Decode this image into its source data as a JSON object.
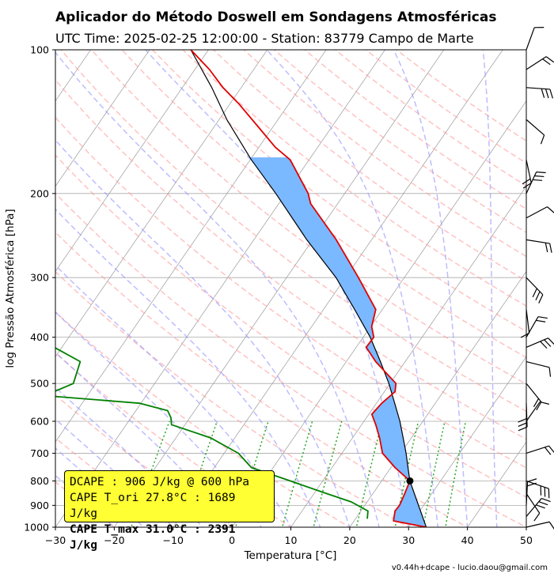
{
  "header": {
    "title": "Aplicador do Método Doswell em Sondagens Atmosféricas",
    "subtitle": "UTC Time: 2025-02-25 12:00:00 - Station: 83779 Campo de Marte"
  },
  "footer": {
    "credit": "v0.44h+dcape  -  lucio.daou@gmail.com"
  },
  "legend": {
    "line1": "DCAPE : 906 J/kg @ 600 hPa",
    "line2": "CAPE T_ori 27.8°C : 1689 J/kg",
    "line3": "CAPE T_max 31.0°C : 2391 J/kg"
  },
  "colors": {
    "temperature": "#e00000",
    "dewpoint": "#008000",
    "parcel": "#000000",
    "cape_fill": "#7ab8ff",
    "dry_adiabat": "#ff9999",
    "moist_adiabat": "#9999ff",
    "mixing_ratio": "#009900",
    "isotherm": "#999999",
    "legend_bg": "#ffff33"
  },
  "chart_data": {
    "type": "skew-t log-p",
    "xlabel": "Temperatura [°C]",
    "ylabel": "log Pressão Atmosférica [hPa]",
    "xlim": [
      -30,
      50
    ],
    "ylim": [
      1000,
      100
    ],
    "x_ticks": [
      -30,
      -20,
      -10,
      0,
      10,
      20,
      30,
      40,
      50
    ],
    "y_ticks": [
      100,
      200,
      300,
      400,
      500,
      600,
      700,
      800,
      900,
      1000
    ],
    "y_scale": "log",
    "grid": true,
    "skew_per_decade_celsius": 56,
    "temperature_profile": [
      {
        "p": 1000,
        "t": 33.0
      },
      {
        "p": 970,
        "t": 26.7
      },
      {
        "p": 925,
        "t": 25.8
      },
      {
        "p": 900,
        "t": 25.9
      },
      {
        "p": 850,
        "t": 25.4
      },
      {
        "p": 800,
        "t": 24.8
      },
      {
        "p": 750,
        "t": 20.7
      },
      {
        "p": 700,
        "t": 16.9
      },
      {
        "p": 650,
        "t": 14.6
      },
      {
        "p": 610,
        "t": 12.4
      },
      {
        "p": 580,
        "t": 10.5
      },
      {
        "p": 550,
        "t": 10.9
      },
      {
        "p": 520,
        "t": 11.8
      },
      {
        "p": 500,
        "t": 11.0
      },
      {
        "p": 450,
        "t": 5.0
      },
      {
        "p": 420,
        "t": 1.7
      },
      {
        "p": 400,
        "t": 1.8
      },
      {
        "p": 380,
        "t": 0.2
      },
      {
        "p": 350,
        "t": -1.1
      },
      {
        "p": 300,
        "t": -7.8
      },
      {
        "p": 250,
        "t": -16.0
      },
      {
        "p": 210,
        "t": -24.6
      },
      {
        "p": 200,
        "t": -26.2
      },
      {
        "p": 170,
        "t": -33.2
      },
      {
        "p": 160,
        "t": -37.2
      },
      {
        "p": 145,
        "t": -42.5
      },
      {
        "p": 130,
        "t": -48.4
      },
      {
        "p": 120,
        "t": -53.1
      },
      {
        "p": 110,
        "t": -57.5
      },
      {
        "p": 100,
        "t": -63.0
      }
    ],
    "dewpoint_profile": [
      {
        "p": 960,
        "t": 22.0
      },
      {
        "p": 925,
        "t": 21.2
      },
      {
        "p": 885,
        "t": 17.3
      },
      {
        "p": 850,
        "t": 12.1
      },
      {
        "p": 800,
        "t": 4.5
      },
      {
        "p": 750,
        "t": -3.7
      },
      {
        "p": 700,
        "t": -7.6
      },
      {
        "p": 650,
        "t": -14.1
      },
      {
        "p": 610,
        "t": -22.3
      },
      {
        "p": 590,
        "t": -23.2
      },
      {
        "p": 570,
        "t": -24.6
      },
      {
        "p": 550,
        "t": -30.2
      },
      {
        "p": 530,
        "t": -47.3
      },
      {
        "p": 500,
        "t": -43.8
      },
      {
        "p": 450,
        "t": -45.2
      },
      {
        "p": 410,
        "t": -53.4
      },
      {
        "p": 390,
        "t": -73.8
      },
      {
        "p": 350,
        "t": -61.2
      },
      {
        "p": 300,
        "t": -64.3
      },
      {
        "p": 250,
        "t": -76.2
      },
      {
        "p": 225,
        "t": -77.7
      },
      {
        "p": 200,
        "t": -89.0
      },
      {
        "p": 170,
        "t": -93.6
      },
      {
        "p": 140,
        "t": -99.8
      },
      {
        "p": 120,
        "t": -95.2
      },
      {
        "p": 108,
        "t": -104.6
      },
      {
        "p": 100,
        "t": -105.8
      }
    ],
    "parcel_profile": [
      {
        "p": 1000,
        "t": 33.0
      },
      {
        "p": 800,
        "t": 24.8
      },
      {
        "p": 750,
        "t": 22.9
      },
      {
        "p": 700,
        "t": 20.9
      },
      {
        "p": 650,
        "t": 18.6
      },
      {
        "p": 600,
        "t": 16.1
      },
      {
        "p": 550,
        "t": 13.1
      },
      {
        "p": 500,
        "t": 9.8
      },
      {
        "p": 450,
        "t": 5.8
      },
      {
        "p": 400,
        "t": 1.2
      },
      {
        "p": 350,
        "t": -4.7
      },
      {
        "p": 300,
        "t": -11.6
      },
      {
        "p": 250,
        "t": -21.0
      },
      {
        "p": 200,
        "t": -31.7
      },
      {
        "p": 170,
        "t": -39.8
      },
      {
        "p": 140,
        "t": -48.7
      },
      {
        "p": 120,
        "t": -55.0
      },
      {
        "p": 100,
        "t": -63.0
      }
    ],
    "lcl_point": {
      "p": 800,
      "t": 24.8
    },
    "cape_bottom_hPa": 800,
    "cape_top_hPa": 168,
    "wind_barbs_hPa": [
      100,
      110,
      120,
      140,
      170,
      200,
      225,
      250,
      300,
      350,
      400,
      420,
      450,
      500,
      550,
      600,
      700,
      800,
      850,
      900,
      950,
      1000
    ]
  }
}
